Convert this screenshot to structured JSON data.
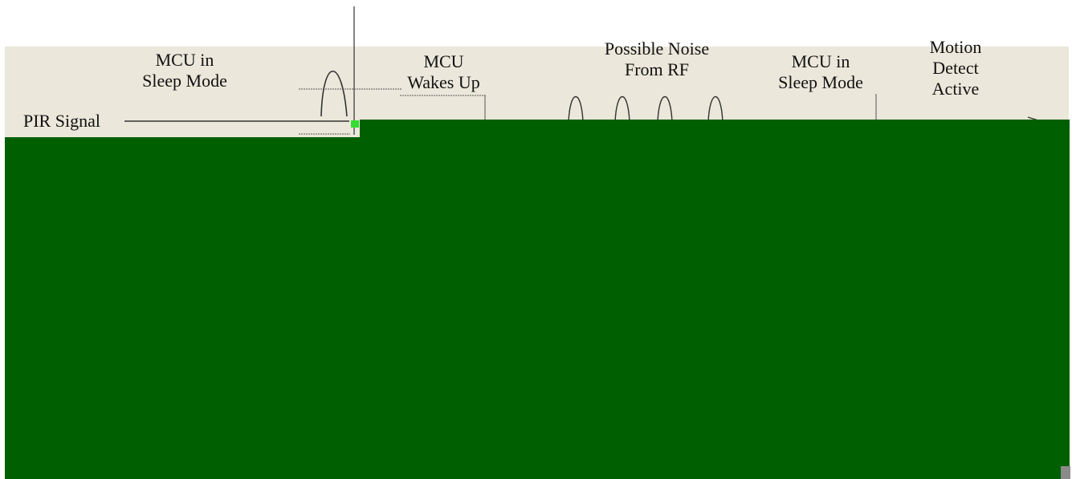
{
  "labels": {
    "mcu_sleep_1": {
      "line1": "MCU in",
      "line2": "Sleep Mode"
    },
    "mcu_wakes": {
      "line1": "MCU",
      "line2": "Wakes Up"
    },
    "noise": {
      "line1": "Possible Noise",
      "line2": "From RF"
    },
    "mcu_sleep_2": {
      "line1": "MCU in",
      "line2": "Sleep Mode"
    },
    "motion": {
      "line1": "Motion",
      "line2": "Detect",
      "line3": "Active"
    },
    "pir": "PIR Signal"
  },
  "colors": {
    "panel_background": "#ebe7da",
    "overlay_green": "#005f00",
    "line": "#333333",
    "text": "#111111",
    "marker_green": "#33dd33",
    "marker_blue": "#1133cc",
    "corner_gray": "#8a8a8a"
  }
}
